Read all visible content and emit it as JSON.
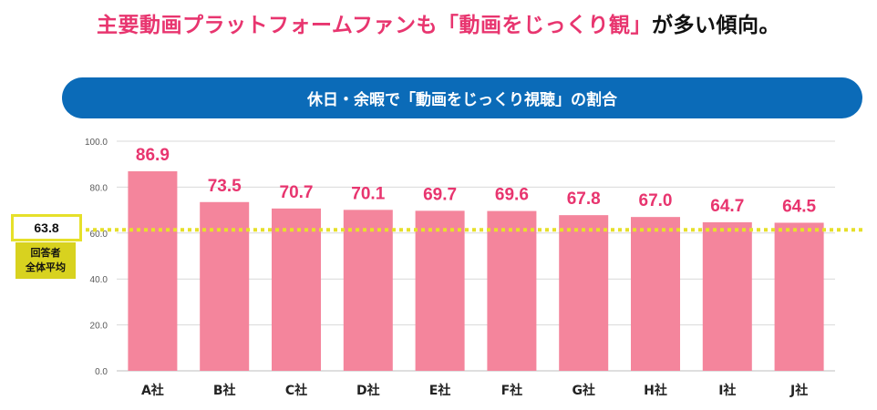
{
  "headline": {
    "pink": "主要動画プラットフォームファンも「動画をじっくり観」",
    "black": "が多い傾向。"
  },
  "banner": {
    "title": "休日・余暇で「動画をじっくり視聴」の割合"
  },
  "average": {
    "value": "63.8",
    "label_line1": "回答者",
    "label_line2": "全体平均"
  },
  "colors": {
    "bar": "#f4859c",
    "value_label": "#e8356f",
    "banner": "#0b6bb8",
    "avg_line": "#e6e02a"
  },
  "chart_data": {
    "type": "bar",
    "title": "休日・余暇で「動画をじっくり視聴」の割合",
    "categories": [
      "A社",
      "B社",
      "C社",
      "D社",
      "E社",
      "F社",
      "G社",
      "H社",
      "I社",
      "J社"
    ],
    "values": [
      86.9,
      73.5,
      70.7,
      70.1,
      69.7,
      69.6,
      67.8,
      67.0,
      64.7,
      64.5
    ],
    "value_labels": [
      "86.9",
      "73.5",
      "70.7",
      "70.1",
      "69.7",
      "69.6",
      "67.8",
      "67.0",
      "64.7",
      "64.5"
    ],
    "yticks": [
      0,
      20,
      40,
      60,
      80,
      100
    ],
    "ytick_labels": [
      "0.0",
      "20.0",
      "40.0",
      "60.0",
      "80.0",
      "100.0"
    ],
    "ylim": [
      0,
      100
    ],
    "reference_line": 63.8,
    "grid": true,
    "xlabel": "",
    "ylabel": ""
  }
}
